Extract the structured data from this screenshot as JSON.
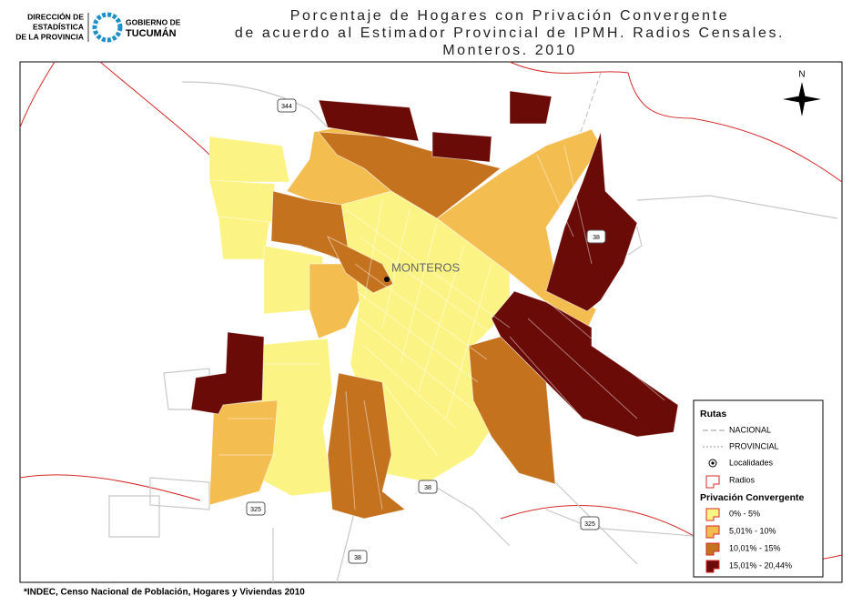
{
  "header": {
    "org1": [
      "DIRECCIÓN DE",
      "ESTADÍSTICA",
      "DE LA PROVINCIA"
    ],
    "org2": [
      "GOBIERNO DE",
      "TUCUMÁN"
    ]
  },
  "title": [
    "Porcentaje de Hogares con Privación Convergente",
    "de acuerdo al Estimador Provincial de IPMH. Radios Censales.",
    "Monteros. 2010"
  ],
  "map": {
    "north": "N",
    "locality": "MONTEROS",
    "road_shields": [
      "344",
      "38",
      "38",
      "325",
      "325",
      "38"
    ]
  },
  "legend": {
    "roads_title": "Rutas",
    "roads": [
      "NACIONAL",
      "PROVINCIAL"
    ],
    "localities": "Localidades",
    "radios": "Radios",
    "classes_title": "Privación Convergente",
    "classes": [
      {
        "label": "0% - 5%",
        "color": "#fbf485"
      },
      {
        "label": "5,01% - 10%",
        "color": "#f4bd50"
      },
      {
        "label": "10,01% - 15%",
        "color": "#c5721f"
      },
      {
        "label": "15,01% - 20,44%",
        "color": "#6b0b08"
      }
    ]
  },
  "source": "*INDEC, Censo Nacional de Población, Hogares y Viviendas 2010"
}
